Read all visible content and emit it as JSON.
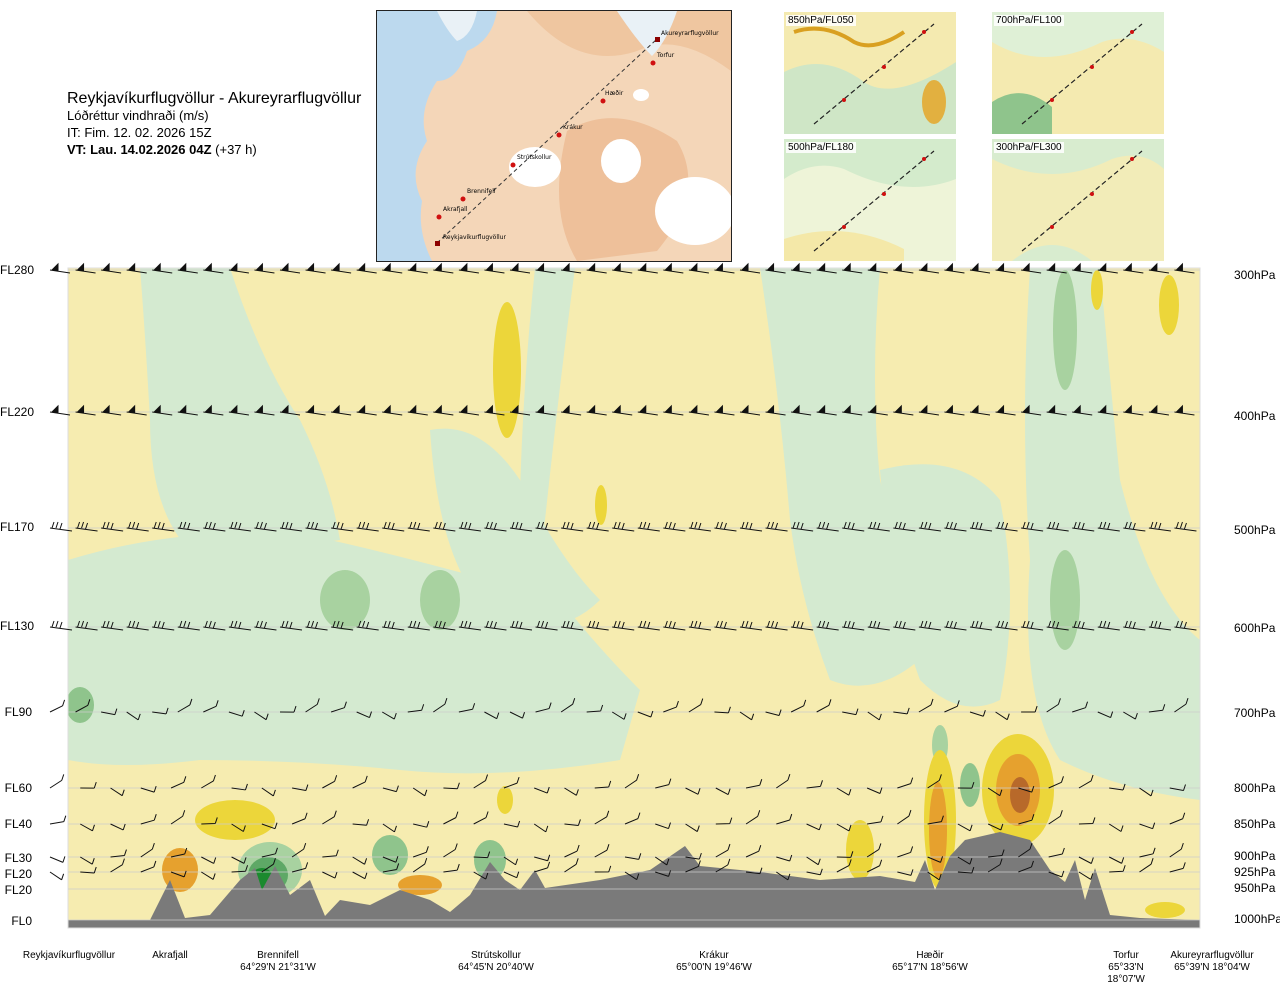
{
  "header": {
    "route": "Reykjavíkurflugvöllur - Akureyrarflugvöllur",
    "quantity": "Lóðréttur vindhraði (m/s)",
    "issue_time": "IT: Fim. 12. 02. 2026 15Z",
    "valid_time_bold": "VT: Lau. 14.02.2026 04Z",
    "valid_time_offset": "(+37 h)"
  },
  "route_map": {
    "points": [
      {
        "label": "Akureyrarflugvöllur"
      },
      {
        "label": "Torfur"
      },
      {
        "label": "Hæðir"
      },
      {
        "label": "Krákur"
      },
      {
        "label": "Strútskollur"
      },
      {
        "label": "Brennifell"
      },
      {
        "label": "Akrafjall"
      },
      {
        "label": "Reykjavíkurflugvöllur"
      }
    ]
  },
  "mini_maps": [
    {
      "label": "850hPa/FL050"
    },
    {
      "label": "700hPa/FL100"
    },
    {
      "label": "500hPa/FL180"
    },
    {
      "label": "300hPa/FL300"
    }
  ],
  "levels": [
    {
      "fl": "FL280",
      "hpa": "300hPa"
    },
    {
      "fl": "FL220",
      "hpa": "400hPa"
    },
    {
      "fl": "FL170",
      "hpa": "500hPa"
    },
    {
      "fl": "FL130",
      "hpa": "600hPa"
    },
    {
      "fl": "FL90",
      "hpa": "700hPa"
    },
    {
      "fl": "FL60",
      "hpa": "800hPa"
    },
    {
      "fl": "FL40",
      "hpa": "850hPa"
    },
    {
      "fl": "FL30",
      "hpa": "900hPa"
    },
    {
      "fl": "FL20",
      "hpa": "925hPa"
    },
    {
      "fl": "FL20",
      "hpa": "950hPa"
    },
    {
      "fl": "FL0",
      "hpa": "1000hPa"
    }
  ],
  "places": [
    {
      "name": "Reykjavíkurflugvöllur",
      "coord": ""
    },
    {
      "name": "Akrafjall",
      "coord": ""
    },
    {
      "name": "Brennifell",
      "coord": "64°29'N 21°31'W"
    },
    {
      "name": "Strútskollur",
      "coord": "64°45'N 20°40'W"
    },
    {
      "name": "Krákur",
      "coord": "65°00'N 19°46'W"
    },
    {
      "name": "Hæðir",
      "coord": "65°17'N 18°56'W"
    },
    {
      "name": "Torfur",
      "coord": "65°33'N 18°07'W"
    },
    {
      "name": "Akureyrarflugvöllur",
      "coord": "65°39'N 18°04'W"
    }
  ],
  "colors": {
    "yellow_light": "#f6ecb0",
    "yellow": "#ecd63a",
    "orange": "#e6a12e",
    "brown": "#b8692a",
    "green_light": "#d6ecd0",
    "green": "#a8d2a0",
    "green_dark": "#5ea866",
    "green_strong": "#1b8a2e",
    "terrain": "#7a7a7a"
  }
}
